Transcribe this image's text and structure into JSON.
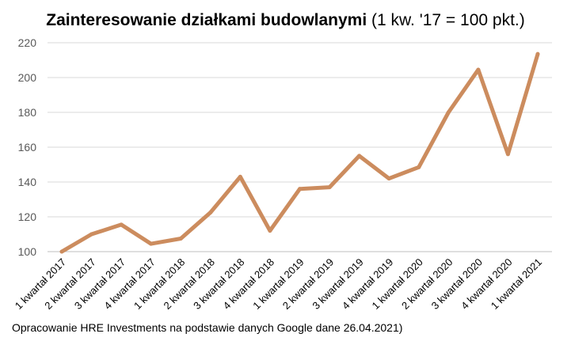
{
  "chart_data": {
    "type": "line",
    "title": "Zainteresowanie działkami budowlanymi",
    "subtitle": "(1 kw. '17 = 100 pkt.)",
    "xlabel": "",
    "ylabel": "",
    "categories": [
      "1 kwartał 2017",
      "2 kwartał 2017",
      "3 kwartał 2017",
      "4 kwartał 2017",
      "1 kwartał 2018",
      "2 kwartał 2018",
      "3 kwartał 2018",
      "4 kwartał 2018",
      "1 kwartał 2019",
      "2 kwartał 2019",
      "3 kwartał 2019",
      "4 kwartał 2019",
      "1 kwartał 2020",
      "2 kwartał 2020",
      "3 kwartał 2020",
      "4 kwartał 2020",
      "1 kwartał 2021"
    ],
    "series": [
      {
        "values": [
          100,
          110,
          115.5,
          104.5,
          107.5,
          122.5,
          143,
          112,
          136,
          137,
          155,
          142,
          148.5,
          180,
          204.5,
          156,
          213.5
        ],
        "color": "#cc8c5e"
      }
    ],
    "ylim": [
      100,
      220
    ],
    "yticks": [
      100,
      120,
      140,
      160,
      180,
      200,
      220
    ],
    "grid": true,
    "legend": "none"
  },
  "footer": {
    "source": "Opracowanie HRE Investments na podstawie danych Google dane 26.04.2021)"
  }
}
